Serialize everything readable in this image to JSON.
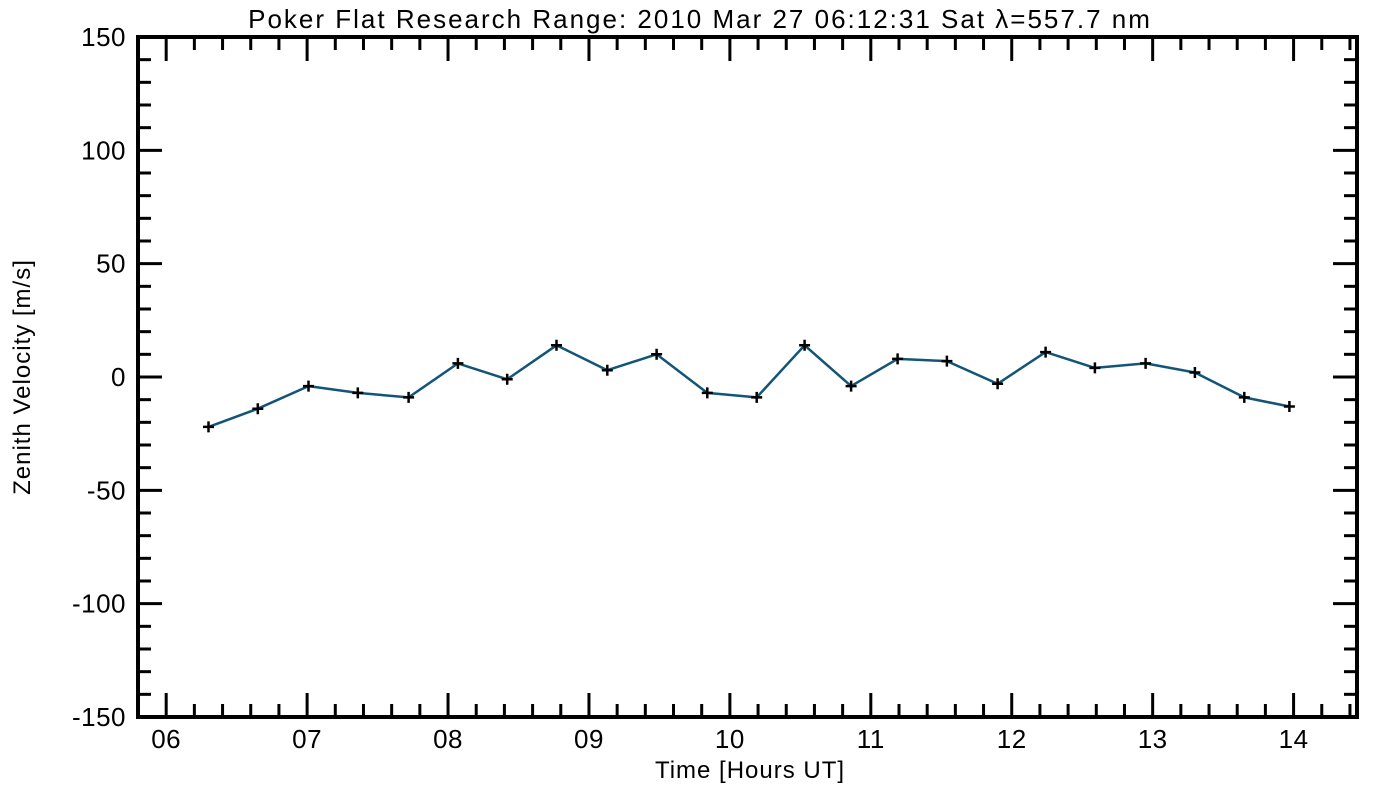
{
  "chart_data": {
    "type": "line",
    "title": "Poker Flat Research Range: 2010 Mar 27 06:12:31 Sat λ=557.7 nm",
    "xlabel": "Time [Hours UT]",
    "ylabel": "Zenith Velocity [m/s]",
    "x": [
      6.3,
      6.65,
      7.01,
      7.36,
      7.72,
      8.07,
      8.42,
      8.77,
      9.13,
      9.48,
      9.84,
      10.19,
      10.53,
      10.86,
      11.19,
      11.54,
      11.9,
      12.24,
      12.59,
      12.95,
      13.3,
      13.65,
      13.97
    ],
    "y": [
      -22,
      -14,
      -4,
      -7,
      -9,
      6,
      -1,
      14,
      3,
      10,
      -7,
      -9,
      14,
      -4,
      8,
      7,
      -3,
      11,
      4,
      6,
      2,
      -9,
      -13
    ],
    "xlim": [
      5.8,
      14.45
    ],
    "ylim": [
      -150,
      150
    ],
    "x_major_ticks": [
      6,
      7,
      8,
      9,
      10,
      11,
      12,
      13,
      14
    ],
    "x_tick_labels": [
      "06",
      "07",
      "08",
      "09",
      "10",
      "11",
      "12",
      "13",
      "14"
    ],
    "x_minor_interval": 0.2,
    "y_major_ticks": [
      -150,
      -100,
      -50,
      0,
      50,
      100,
      150
    ],
    "y_tick_labels": [
      "-150",
      "-100",
      "-50",
      "0",
      "50",
      "100",
      "150"
    ],
    "y_minor_interval": 10,
    "grid": false,
    "legend": null,
    "line_color": "#135577",
    "marker": "plus",
    "marker_color": "#000000",
    "axis_color": "#000000",
    "background_color": "#ffffff"
  }
}
